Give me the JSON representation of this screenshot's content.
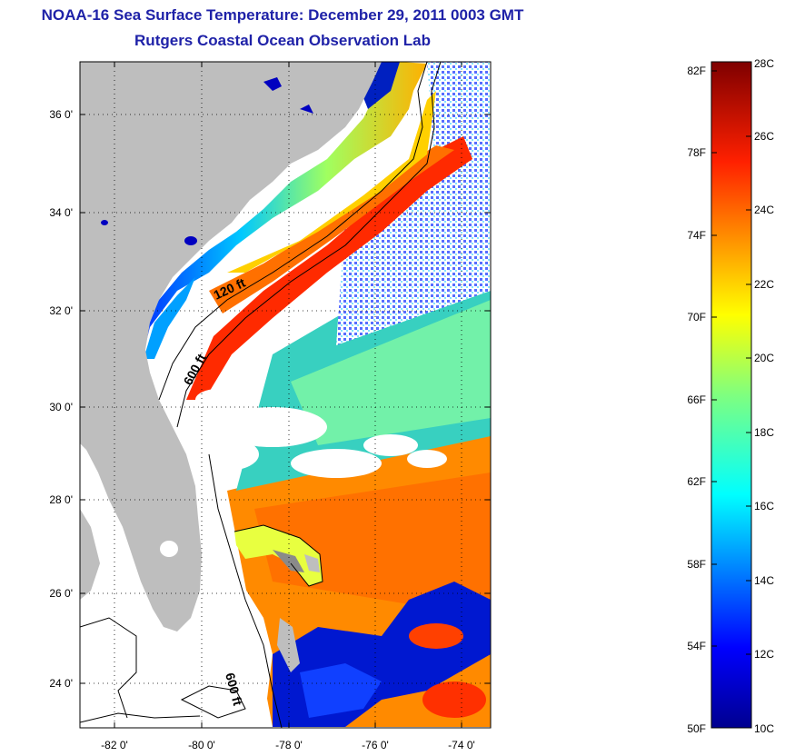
{
  "title_line1": "NOAA-16 Sea Surface Temperature:  December 29, 2011 0003 GMT",
  "title_line2": "Rutgers Coastal Ocean Observation Lab",
  "lat_labels": [
    "36 0'",
    "34 0'",
    "32 0'",
    "30 0'",
    "28 0'",
    "26 0'",
    "24 0'"
  ],
  "lon_labels": [
    "-82 0'",
    "-80 0'",
    "-78 0'",
    "-76 0'",
    "-74 0'"
  ],
  "contour_labels": [
    "120 ft",
    "600 ft",
    "600 ft"
  ],
  "colorbar": {
    "fahrenheit_labels": [
      "82F",
      "78F",
      "74F",
      "70F",
      "66F",
      "62F",
      "58F",
      "54F",
      "50F"
    ],
    "celsius_labels": [
      "28C",
      "26C",
      "24C",
      "22C",
      "20C",
      "18C",
      "16C",
      "14C",
      "12C",
      "10C"
    ],
    "range_celsius": [
      10,
      28
    ],
    "range_fahrenheit": [
      50,
      82.4
    ]
  },
  "colors": {
    "title": "#1f22a8",
    "land": "#bebebe",
    "no_data": "#ffffff"
  }
}
